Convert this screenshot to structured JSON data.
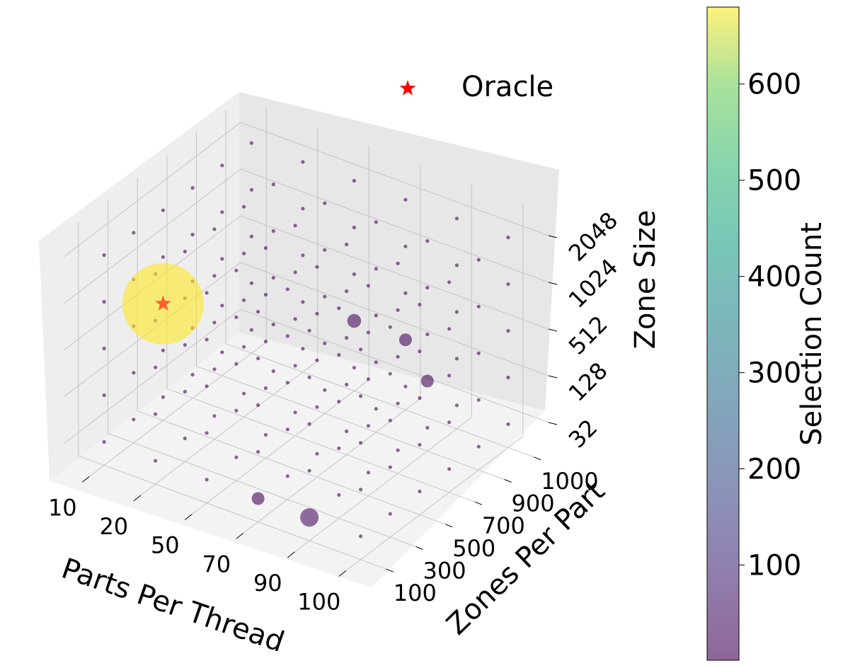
{
  "chart_data": {
    "type": "scatter3d",
    "x_axis": {
      "label": "Parts Per Thread",
      "categories": [
        "10",
        "20",
        "50",
        "70",
        "90",
        "100"
      ]
    },
    "y_axis": {
      "label": "Zones Per Part",
      "categories": [
        "100",
        "300",
        "500",
        "700",
        "900",
        "1000"
      ]
    },
    "z_axis": {
      "label": "Zone Size",
      "categories": [
        "32",
        "128",
        "512",
        "1024",
        "2048"
      ]
    },
    "colorbar": {
      "label": "Selection Count",
      "min": 1,
      "max": 680,
      "ticks": [
        "100",
        "200",
        "300",
        "400",
        "500",
        "600"
      ],
      "tick_values": [
        100,
        200,
        300,
        400,
        500,
        600
      ],
      "colormap": "viridis",
      "alpha": 0.6
    },
    "default_count": 1,
    "highlighted_points": [
      {
        "x_index": 0,
        "y_index": 2,
        "z_index": 2,
        "count": 680
      },
      {
        "x_index": 2,
        "y_index": 5,
        "z_index": 1,
        "count": 20
      },
      {
        "x_index": 3,
        "y_index": 5,
        "z_index": 1,
        "count": 12
      },
      {
        "x_index": 4,
        "y_index": 4,
        "z_index": 1,
        "count": 12
      },
      {
        "x_index": 3,
        "y_index": 0,
        "z_index": 0,
        "count": 8
      },
      {
        "x_index": 4,
        "y_index": 0,
        "z_index": 0,
        "count": 35
      }
    ],
    "oracle": {
      "label": "Oracle",
      "x_index": 0,
      "y_index": 2,
      "z_index": 2,
      "color": "#ff0000"
    },
    "legend": {
      "position": "top-right",
      "entries": [
        "Oracle"
      ]
    }
  }
}
